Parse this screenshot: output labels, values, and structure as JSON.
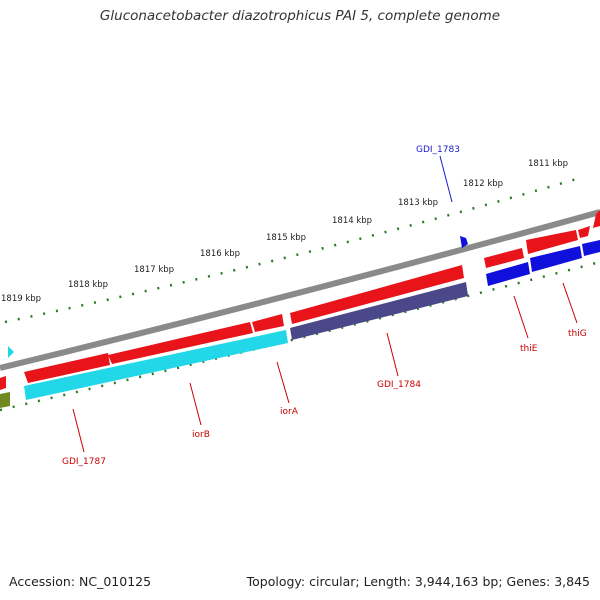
{
  "title": "Gluconacetobacter diazotrophicus PAI 5, complete genome",
  "footer": {
    "accession": "Accession: NC_010125",
    "summary": "Topology: circular; Length: 3,944,163 bp; Genes: 3,845"
  },
  "scale": {
    "labels": [
      "1811 kbp",
      "1812 kbp",
      "1813 kbp",
      "1814 kbp",
      "1815 kbp",
      "1816 kbp",
      "1817 kbp",
      "1818 kbp",
      "1819 kbp"
    ]
  },
  "colors": {
    "forward_cds": "#e8141a",
    "forward_cds_blue": "#1010dd",
    "reverse_cds_cyan": "#22d8e8",
    "reverse_cds_slate": "#4a4888",
    "reverse_cds_olive": "#6f8a20",
    "backbone": "#7a7a7a",
    "tick": "#2a7a2a",
    "forward_label": "#cc0000",
    "blue_label": "#1a1acc"
  },
  "genes": [
    {
      "name": "GDI_1783",
      "color": "blue"
    },
    {
      "name": "thiE",
      "color": "red"
    },
    {
      "name": "thiG",
      "color": "red"
    },
    {
      "name": "GDI_1784",
      "color": "red"
    },
    {
      "name": "iorA",
      "color": "red"
    },
    {
      "name": "iorB",
      "color": "red"
    },
    {
      "name": "GDI_1787",
      "color": "red"
    }
  ]
}
